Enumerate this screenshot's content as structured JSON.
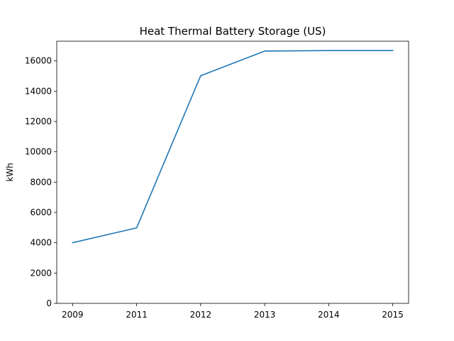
{
  "chart_data": {
    "type": "line",
    "title": "Heat Thermal Battery Storage (US)",
    "xlabel": "",
    "ylabel": "kWh",
    "x": [
      "2009",
      "2011",
      "2012",
      "2013",
      "2014",
      "2015"
    ],
    "series": [
      {
        "values": [
          4000,
          4980,
          15020,
          16650,
          16680,
          16680
        ],
        "color": "#1f77b4"
      }
    ],
    "ylim": [
      0,
      17300
    ],
    "yticks": [
      0,
      2000,
      4000,
      6000,
      8000,
      10000,
      12000,
      14000,
      16000
    ],
    "grid": false,
    "legend": "none"
  }
}
